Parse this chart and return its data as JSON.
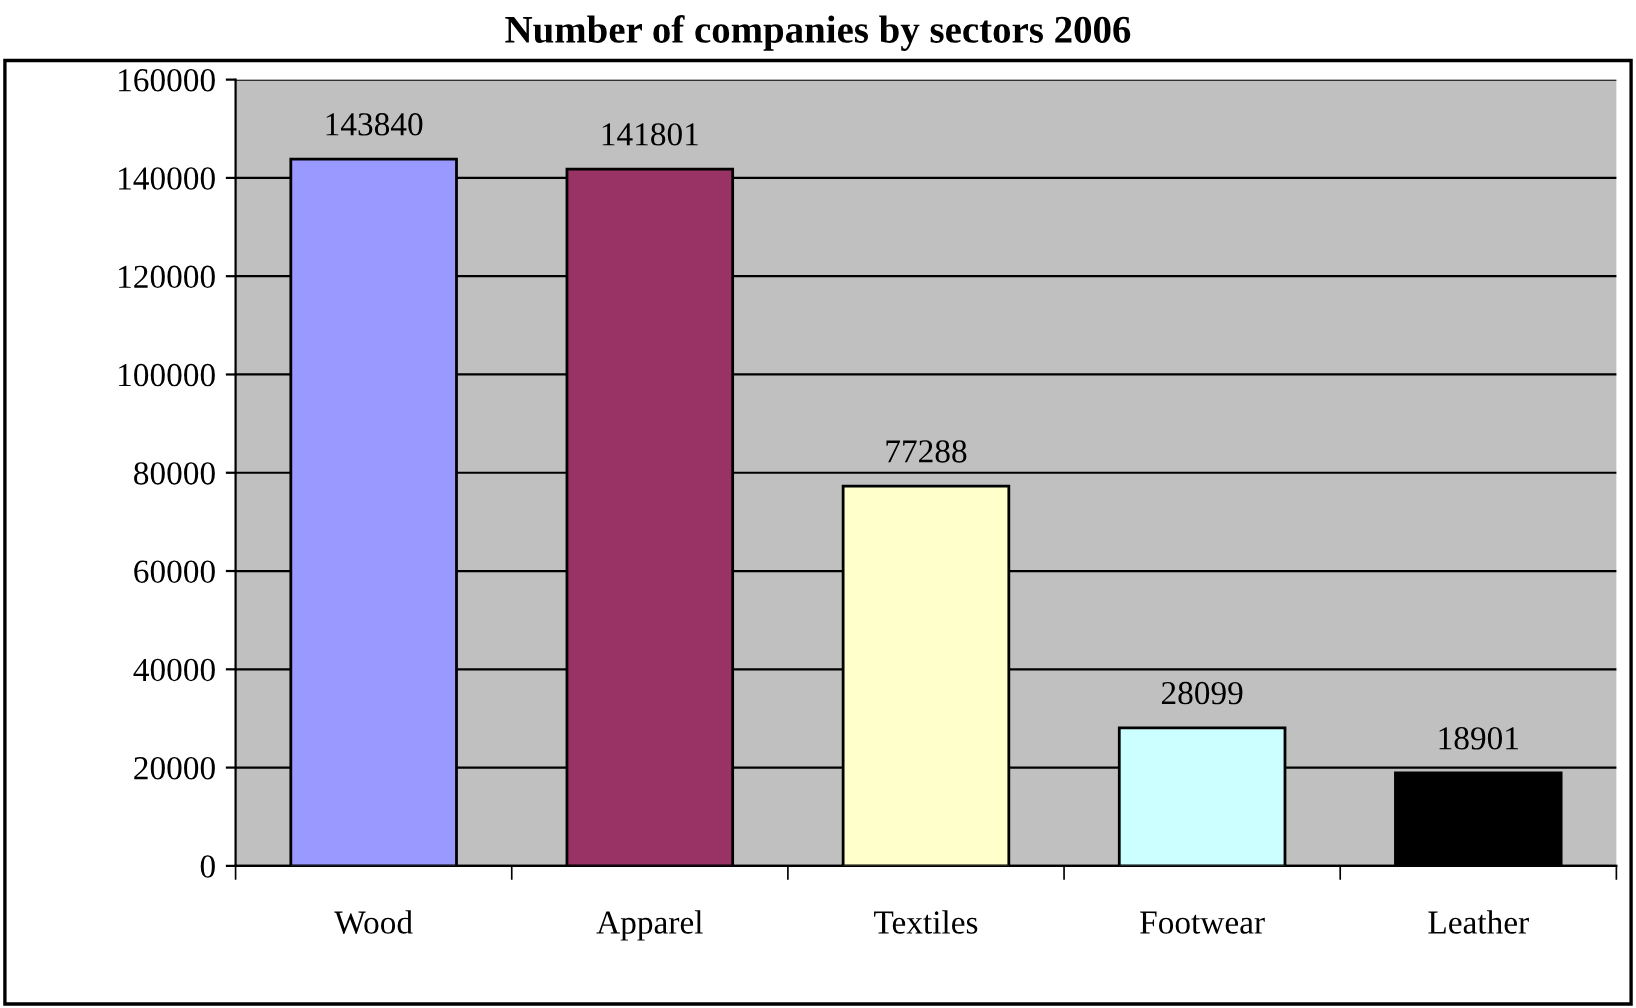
{
  "chart_data": {
    "type": "bar",
    "title": "Number of companies by sectors 2006",
    "categories": [
      "Wood",
      "Apparel",
      "Textiles",
      "Footwear",
      "Leather"
    ],
    "values": [
      143840,
      141801,
      77288,
      28099,
      18901
    ],
    "colors": [
      "#9999ff",
      "#993366",
      "#ffffcc",
      "#ccffff",
      "#000000"
    ],
    "ylim": [
      0,
      160000
    ],
    "yticks": [
      0,
      20000,
      40000,
      60000,
      80000,
      100000,
      120000,
      140000,
      160000
    ],
    "grid": "y",
    "data_labels": true,
    "legend": false
  }
}
